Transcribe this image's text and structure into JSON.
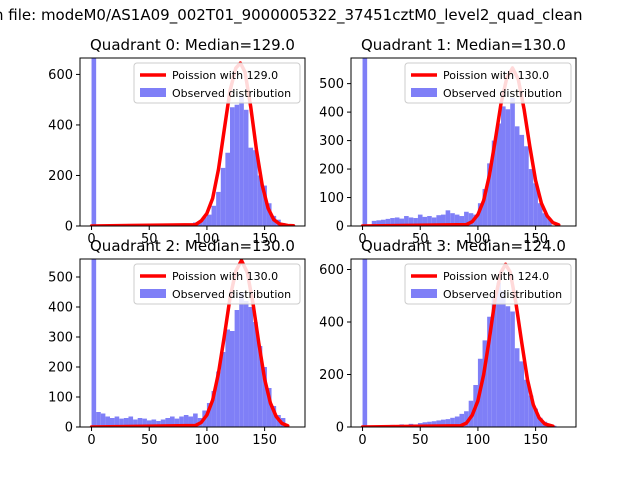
{
  "figure": {
    "title": "n file: modeM0/AS1A09_002T01_9000005322_37451cztM0_level2_quad_clean"
  },
  "colors": {
    "observed": "#7f7ff7",
    "poisson": "#ff0000",
    "poisson_peak": "#f08080"
  },
  "chart_data": [
    {
      "type": "bar",
      "title": "Quadrant 0: Median=129.0",
      "xlim": [
        -10,
        185
      ],
      "ylim": [
        0,
        665
      ],
      "xticks": [
        0,
        50,
        100,
        150
      ],
      "yticks": [
        0,
        200,
        400,
        600
      ],
      "bin_width": 4,
      "series": [
        {
          "name": "Observed distribution",
          "x": [
            0,
            64,
            68,
            72,
            76,
            80,
            84,
            88,
            92,
            96,
            100,
            104,
            108,
            112,
            116,
            120,
            124,
            128,
            132,
            136,
            140,
            144,
            148,
            152,
            156,
            160,
            164,
            168
          ],
          "values": [
            665,
            3,
            5,
            6,
            8,
            10,
            9,
            14,
            18,
            35,
            45,
            80,
            135,
            230,
            290,
            470,
            480,
            520,
            460,
            310,
            300,
            200,
            160,
            90,
            40,
            25,
            12,
            6
          ]
        },
        {
          "name": "Poission with 129.0",
          "x": [
            0,
            90,
            95,
            100,
            105,
            110,
            115,
            120,
            125,
            129,
            133,
            138,
            143,
            148,
            153,
            158,
            163,
            170,
            175
          ],
          "values": [
            0,
            5,
            20,
            50,
            110,
            225,
            380,
            535,
            625,
            645,
            610,
            470,
            300,
            160,
            70,
            25,
            8,
            2,
            1
          ]
        }
      ]
    },
    {
      "type": "bar",
      "title": "Quadrant 1: Median=130.0",
      "xlim": [
        -10,
        185
      ],
      "ylim": [
        0,
        590
      ],
      "xticks": [
        0,
        50,
        100,
        150
      ],
      "yticks": [
        0,
        100,
        200,
        300,
        400,
        500
      ],
      "bin_width": 4,
      "series": [
        {
          "name": "Observed distribution",
          "x": [
            0,
            8,
            12,
            16,
            20,
            24,
            28,
            32,
            36,
            40,
            44,
            48,
            52,
            56,
            60,
            64,
            68,
            72,
            76,
            80,
            84,
            88,
            92,
            96,
            100,
            104,
            108,
            112,
            116,
            120,
            124,
            128,
            132,
            136,
            140,
            144,
            148,
            152,
            156,
            160
          ],
          "values": [
            590,
            18,
            20,
            22,
            25,
            28,
            30,
            26,
            35,
            30,
            28,
            40,
            32,
            35,
            30,
            38,
            40,
            55,
            45,
            40,
            35,
            50,
            45,
            40,
            80,
            130,
            220,
            300,
            360,
            420,
            410,
            450,
            350,
            320,
            280,
            200,
            150,
            80,
            45,
            25
          ]
        },
        {
          "name": "Poission with 130.0",
          "x": [
            0,
            90,
            95,
            100,
            105,
            110,
            115,
            120,
            125,
            130,
            135,
            140,
            145,
            150,
            155,
            160,
            165,
            170
          ],
          "values": [
            0,
            5,
            15,
            40,
            90,
            180,
            300,
            430,
            520,
            555,
            515,
            410,
            280,
            160,
            80,
            35,
            12,
            4
          ]
        }
      ]
    },
    {
      "type": "bar",
      "title": "Quadrant 2: Median=130.0",
      "xlim": [
        -10,
        185
      ],
      "ylim": [
        0,
        560
      ],
      "xticks": [
        0,
        50,
        100,
        150
      ],
      "yticks": [
        0,
        100,
        200,
        300,
        400,
        500
      ],
      "bin_width": 4,
      "series": [
        {
          "name": "Observed distribution",
          "x": [
            0,
            4,
            8,
            12,
            16,
            20,
            24,
            28,
            32,
            36,
            40,
            44,
            48,
            52,
            56,
            60,
            64,
            68,
            72,
            76,
            80,
            84,
            88,
            92,
            96,
            100,
            104,
            108,
            112,
            116,
            120,
            124,
            128,
            132,
            136,
            140,
            144,
            148,
            152,
            156,
            160,
            164
          ],
          "values": [
            560,
            50,
            45,
            35,
            30,
            35,
            28,
            30,
            35,
            25,
            30,
            28,
            22,
            25,
            20,
            25,
            30,
            35,
            28,
            35,
            40,
            35,
            45,
            30,
            55,
            80,
            120,
            185,
            250,
            325,
            320,
            390,
            450,
            420,
            400,
            350,
            270,
            200,
            130,
            70,
            40,
            30
          ]
        },
        {
          "name": "Poission with 130.0",
          "x": [
            0,
            90,
            95,
            100,
            105,
            110,
            115,
            120,
            125,
            130,
            135,
            140,
            145,
            150,
            155,
            160,
            165,
            170
          ],
          "values": [
            0,
            5,
            15,
            40,
            90,
            180,
            300,
            430,
            520,
            555,
            515,
            410,
            280,
            160,
            80,
            35,
            12,
            4
          ]
        }
      ]
    },
    {
      "type": "bar",
      "title": "Quadrant 3: Median=124.0",
      "xlim": [
        -10,
        185
      ],
      "ylim": [
        0,
        640
      ],
      "xticks": [
        0,
        50,
        100,
        150
      ],
      "yticks": [
        0,
        200,
        400,
        600
      ],
      "bin_width": 4,
      "series": [
        {
          "name": "Observed distribution",
          "x": [
            0,
            8,
            12,
            16,
            20,
            24,
            28,
            32,
            36,
            40,
            44,
            48,
            52,
            56,
            60,
            64,
            68,
            72,
            76,
            80,
            84,
            88,
            92,
            96,
            100,
            104,
            108,
            112,
            116,
            120,
            124,
            128,
            132,
            136,
            140,
            144,
            148,
            152,
            156,
            160,
            164
          ],
          "values": [
            640,
            3,
            5,
            4,
            6,
            8,
            6,
            10,
            8,
            12,
            10,
            15,
            18,
            20,
            22,
            25,
            28,
            30,
            35,
            40,
            50,
            60,
            100,
            160,
            260,
            330,
            420,
            500,
            550,
            520,
            460,
            440,
            300,
            250,
            180,
            120,
            70,
            35,
            20,
            8,
            5
          ]
        },
        {
          "name": "Poission with 124.0",
          "x": [
            0,
            85,
            90,
            95,
            100,
            105,
            110,
            115,
            120,
            124,
            128,
            133,
            138,
            143,
            148,
            153,
            158,
            165
          ],
          "values": [
            0,
            5,
            15,
            45,
            100,
            200,
            340,
            490,
            590,
            620,
            590,
            470,
            320,
            180,
            85,
            35,
            12,
            3
          ]
        }
      ]
    }
  ]
}
